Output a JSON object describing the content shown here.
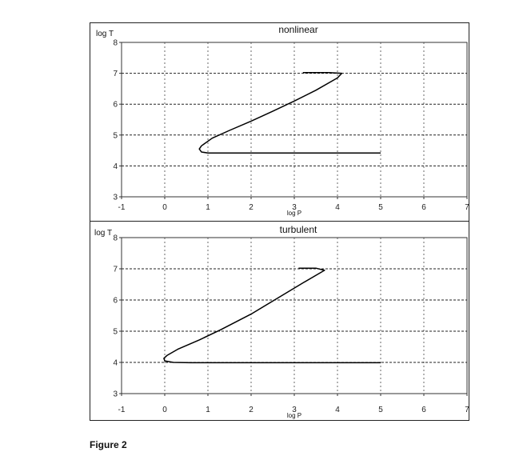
{
  "caption": "Figure 2",
  "chart_data": [
    {
      "type": "line",
      "title": "nonlinear",
      "xlabel": "log P",
      "ylabel": "log T",
      "xlim": [
        -1,
        7
      ],
      "ylim": [
        3,
        8
      ],
      "xticks": [
        "-1",
        "0",
        "1",
        "2",
        "3",
        "4",
        "5",
        "6",
        "7"
      ],
      "yticks": [
        "3",
        "4",
        "5",
        "6",
        "7",
        "8"
      ],
      "grid": true,
      "series": [
        {
          "color": "#000000",
          "x": [
            5.0,
            4.4,
            3.6,
            2.8,
            2.0,
            1.4,
            1.0,
            0.85,
            0.8,
            0.85,
            1.1,
            1.5,
            2.0,
            2.5,
            3.0,
            3.5,
            4.0,
            4.1,
            3.8,
            3.2
          ],
          "y": [
            4.42,
            4.42,
            4.42,
            4.42,
            4.42,
            4.42,
            4.42,
            4.45,
            4.55,
            4.65,
            4.9,
            5.15,
            5.45,
            5.77,
            6.1,
            6.45,
            6.85,
            7.0,
            7.02,
            7.02
          ]
        }
      ]
    },
    {
      "type": "line",
      "title": "turbulent",
      "xlabel": "log P",
      "ylabel": "log T",
      "xlim": [
        -1,
        7
      ],
      "ylim": [
        3,
        8
      ],
      "xticks": [
        "-1",
        "0",
        "1",
        "2",
        "3",
        "4",
        "5",
        "6",
        "7"
      ],
      "yticks": [
        "3",
        "4",
        "5",
        "6",
        "7",
        "8"
      ],
      "grid": true,
      "series": [
        {
          "color": "#000000",
          "x": [
            5.0,
            4.2,
            3.2,
            2.2,
            1.2,
            0.6,
            0.2,
            0.0,
            -0.02,
            0.05,
            0.3,
            0.8,
            1.3,
            2.0,
            2.6,
            3.2,
            3.7,
            3.5,
            3.1
          ],
          "y": [
            3.99,
            3.99,
            3.99,
            3.99,
            3.99,
            3.99,
            4.0,
            4.05,
            4.13,
            4.22,
            4.42,
            4.72,
            5.05,
            5.55,
            6.05,
            6.55,
            6.95,
            7.02,
            7.02
          ]
        }
      ]
    }
  ]
}
